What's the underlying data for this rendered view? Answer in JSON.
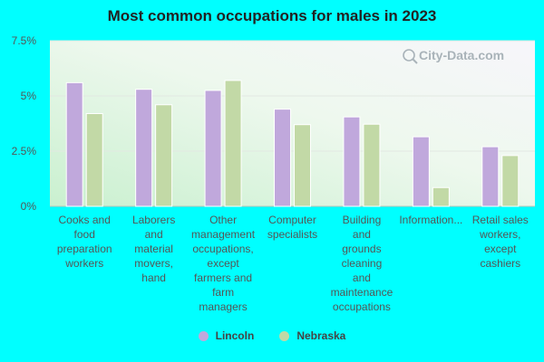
{
  "chart_data": {
    "type": "bar",
    "title": "Most common occupations for males in 2023",
    "xlabel": "",
    "ylabel": "",
    "ylim": [
      0,
      7.5
    ],
    "yticks": [
      "0%",
      "2.5%",
      "5%",
      "7.5%"
    ],
    "ytick_values": [
      0,
      2.5,
      5,
      7.5
    ],
    "categories": [
      [
        "Cooks and",
        "food",
        "preparation",
        "workers"
      ],
      [
        "Laborers",
        "and",
        "material",
        "movers,",
        "hand"
      ],
      [
        "Other",
        "management",
        "occupations,",
        "except",
        "farmers and",
        "farm",
        "managers"
      ],
      [
        "Computer",
        "specialists"
      ],
      [
        "Building",
        "and",
        "grounds",
        "cleaning",
        "and",
        "maintenance",
        "occupations"
      ],
      [
        "Information..."
      ],
      [
        "Retail sales",
        "workers,",
        "except",
        "cashiers"
      ]
    ],
    "series": [
      {
        "name": "Lincoln",
        "color": "#c0a8dc",
        "values": [
          5.6,
          5.3,
          5.25,
          4.4,
          4.05,
          3.15,
          2.7
        ]
      },
      {
        "name": "Nebraska",
        "color": "#c2d9a6",
        "values": [
          4.2,
          4.6,
          5.7,
          3.7,
          3.72,
          0.85,
          2.3
        ]
      }
    ],
    "watermark": "City-Data.com"
  }
}
